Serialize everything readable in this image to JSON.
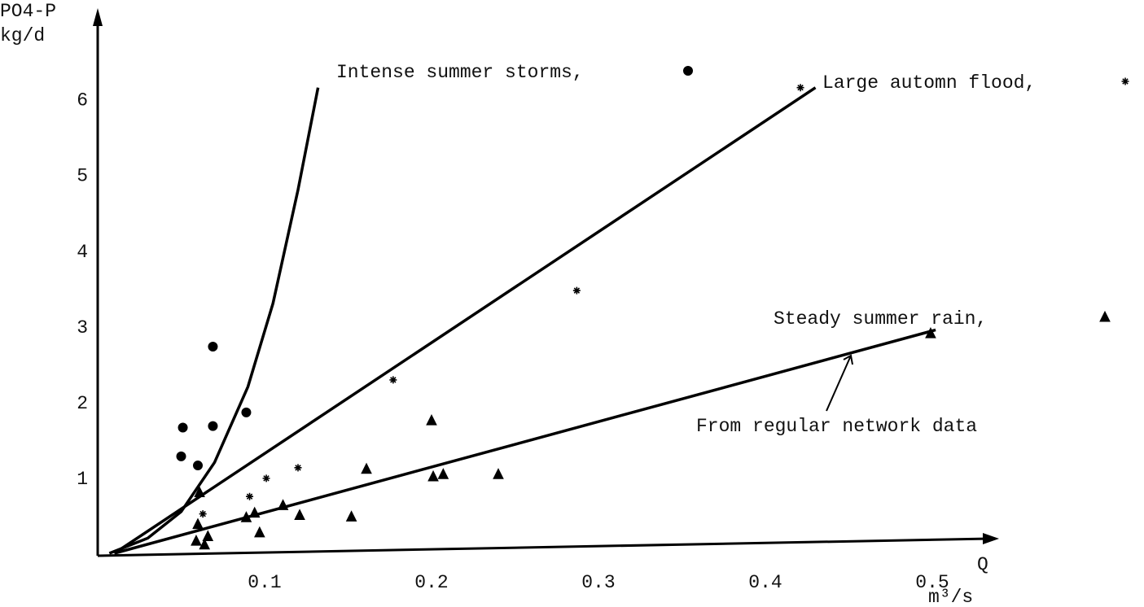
{
  "chart_data": {
    "type": "scatter",
    "y_label": "PO4-P",
    "y_unit": "kg/d",
    "x_label": "Q",
    "x_unit": "m³/s",
    "xlim": [
      0,
      0.54
    ],
    "ylim": [
      0,
      7.2
    ],
    "xticks": [
      0.1,
      0.2,
      0.3,
      0.4,
      0.5
    ],
    "yticks": [
      1,
      2,
      3,
      4,
      5,
      6
    ],
    "series": [
      {
        "name": "Intense summer storms,",
        "color": "#000000",
        "marker": "circle",
        "x": [
          0.051,
          0.05,
          0.06,
          0.069,
          0.069,
          0.089
        ],
        "values": [
          1.66,
          1.28,
          1.16,
          2.73,
          1.68,
          1.86
        ],
        "fit": {
          "x": [
            0.007,
            0.03,
            0.05,
            0.07,
            0.09,
            0.105,
            0.12,
            0.132
          ],
          "values": [
            0,
            0.2,
            0.55,
            1.2,
            2.2,
            3.3,
            4.8,
            6.15
          ]
        }
      },
      {
        "name": "Large automn flood,",
        "color": "#000000",
        "marker": "star",
        "x": [
          0.421,
          0.287,
          0.177,
          0.12,
          0.101,
          0.091,
          0.063
        ],
        "values": [
          6.15,
          3.47,
          2.29,
          1.13,
          0.99,
          0.75,
          0.52
        ],
        "fit": {
          "x": [
            0.01,
            0.43
          ],
          "values": [
            0,
            6.15
          ]
        }
      },
      {
        "name": "Steady summer rain,",
        "color": "#000000",
        "marker": "triangle",
        "x": [
          0.499,
          0.2,
          0.161,
          0.201,
          0.207,
          0.24,
          0.152,
          0.121,
          0.111,
          0.094,
          0.089,
          0.097,
          0.061,
          0.06,
          0.059,
          0.066,
          0.064
        ],
        "values": [
          2.9,
          1.75,
          1.11,
          1.01,
          1.04,
          1.04,
          0.48,
          0.5,
          0.63,
          0.53,
          0.47,
          0.27,
          0.8,
          0.38,
          0.16,
          0.22,
          0.11
        ],
        "fit": {
          "x": [
            0.01,
            0.502
          ],
          "values": [
            0,
            2.95
          ]
        }
      }
    ],
    "annotations": [
      {
        "text": "From regular network data"
      }
    ]
  }
}
